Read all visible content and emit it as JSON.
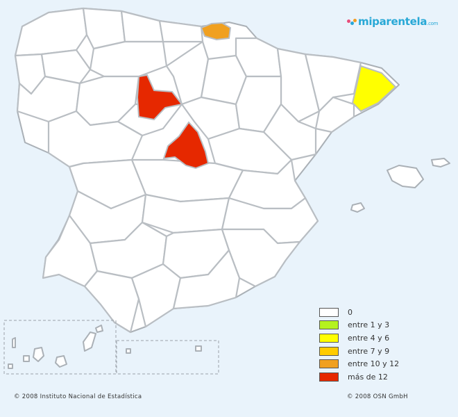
{
  "logo": {
    "name": "miparentela",
    "suffix": ".com"
  },
  "colors": {
    "background": "#e9f3fb",
    "none": "#ffffff",
    "c1_3": "#b5f21e",
    "c4_6": "#ffff00",
    "c7_9": "#ffcc00",
    "c10_12": "#f0a020",
    "c12plus": "#e62800"
  },
  "legend": [
    {
      "label": "0",
      "color": "#ffffff"
    },
    {
      "label": "entre 1 y 3",
      "color": "#b5f21e"
    },
    {
      "label": "entre 4 y 6",
      "color": "#ffff00"
    },
    {
      "label": "entre 7 y 9",
      "color": "#ffcc00"
    },
    {
      "label": "entre 10 y 12",
      "color": "#f0a020"
    },
    {
      "label": "más de 12",
      "color": "#e62800"
    }
  ],
  "credits": {
    "left": "© 2008 Instituto Nacional de Estadística",
    "right": "© 2008 OSN GmbH"
  }
}
